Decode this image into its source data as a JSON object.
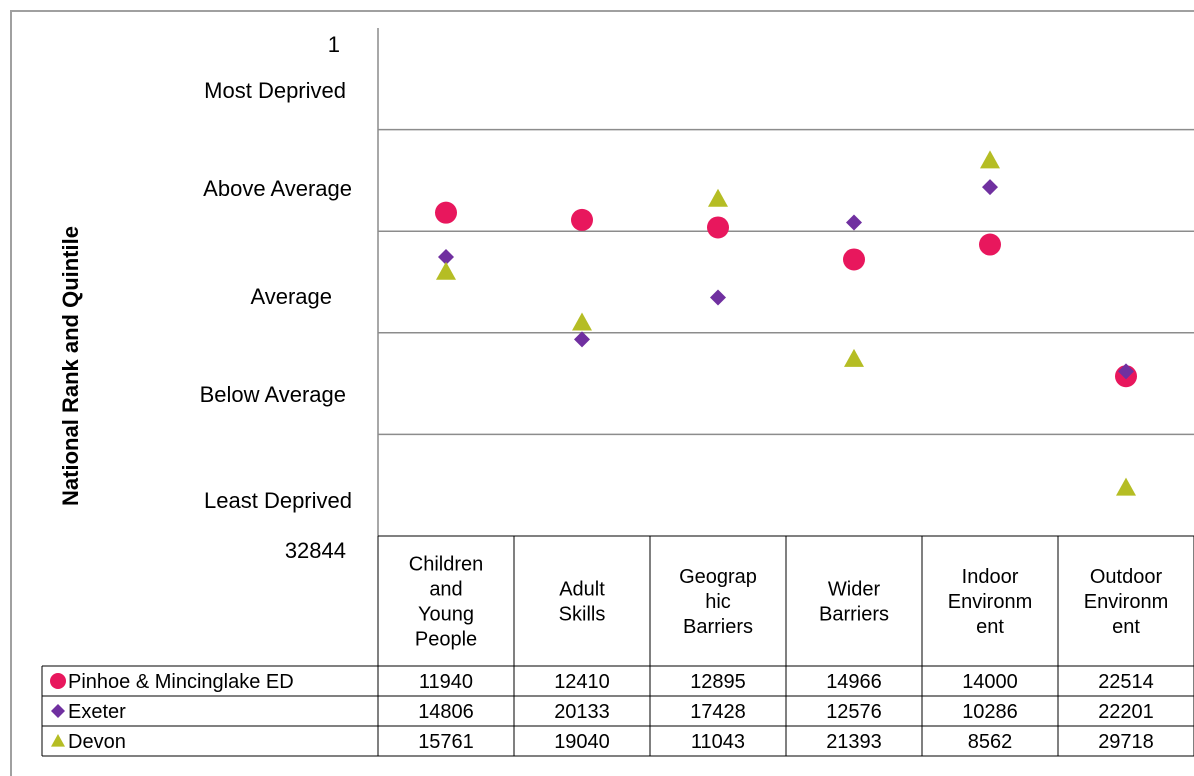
{
  "chart_data": {
    "type": "scatter",
    "ylabel": "National Rank and Quintile",
    "y_axis": {
      "top_value": "1",
      "bottom_value": "32844",
      "min": 1,
      "max": 32844,
      "inverted": true,
      "band_labels": [
        "Most Deprived",
        "Above Average",
        "Average",
        "Below Average",
        "Least Deprived"
      ]
    },
    "categories": [
      "Children and Young People",
      "Adult Skills",
      "Geographic Barriers",
      "Wider Barriers",
      "Indoor Environment",
      "Outdoor Environment"
    ],
    "category_lines": [
      [
        "Children",
        "and",
        "Young",
        "People"
      ],
      [
        "Adult",
        "Skills"
      ],
      [
        "Geograp",
        "hic",
        "Barriers"
      ],
      [
        "Wider",
        "Barriers"
      ],
      [
        "Indoor",
        "Environm",
        "ent"
      ],
      [
        "Outdoor",
        "Environm",
        "ent"
      ]
    ],
    "series": [
      {
        "name": "Pinhoe & Mincinglake ED",
        "marker": "circle",
        "color": "#e8175d",
        "values": [
          11940,
          12410,
          12895,
          14966,
          14000,
          22514
        ]
      },
      {
        "name": "Exeter",
        "marker": "diamond",
        "color": "#7030a0",
        "values": [
          14806,
          20133,
          17428,
          12576,
          10286,
          22201
        ]
      },
      {
        "name": "Devon",
        "marker": "triangle",
        "color": "#b5bd24",
        "values": [
          15761,
          19040,
          11043,
          21393,
          8562,
          29718
        ]
      }
    ],
    "grid": true
  }
}
